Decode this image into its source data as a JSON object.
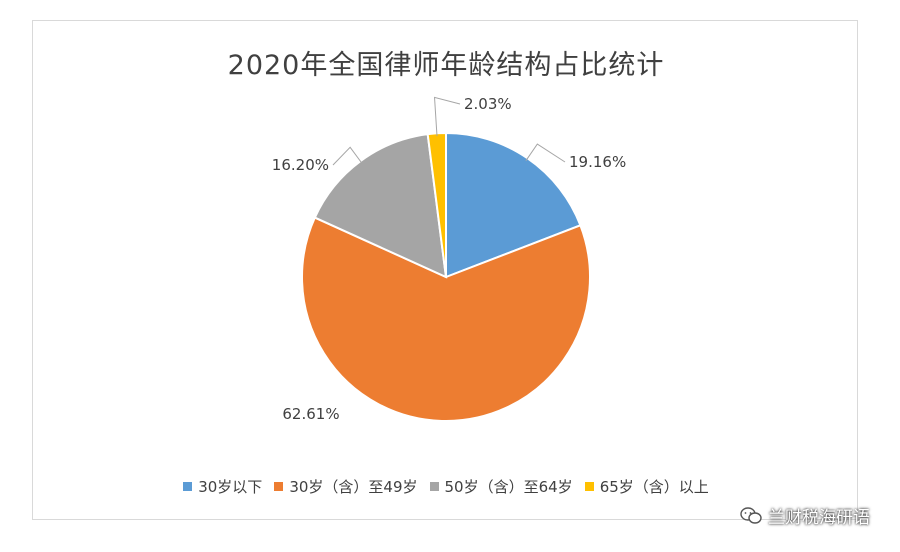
{
  "watermark": {
    "text": "兰财税海研语",
    "icon": "wechat-icon"
  },
  "chart_data": {
    "type": "pie",
    "title": "2020年全国律师年龄结构占比统计",
    "categories": [
      "30岁以下",
      "30岁（含）至49岁",
      "50岁（含）至64岁",
      "65岁（含）以上"
    ],
    "values": [
      19.16,
      62.61,
      16.2,
      2.03
    ],
    "labels": [
      "19.16%",
      "62.61%",
      "16.20%",
      "2.03%"
    ],
    "colors": [
      "#5b9bd5",
      "#ed7d31",
      "#a5a5a5",
      "#ffc000"
    ],
    "legend_position": "bottom"
  }
}
